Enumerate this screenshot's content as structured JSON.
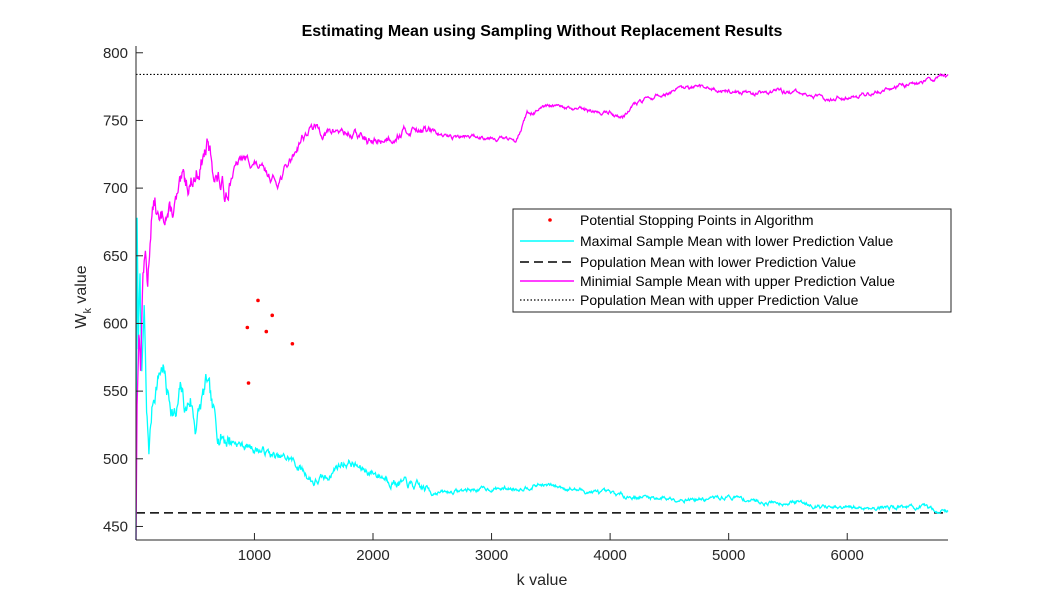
{
  "chart_data": {
    "type": "line",
    "title": "Estimating Mean using Sampling Without Replacement Results",
    "xlabel": "k value",
    "ylabel": {
      "main": "W",
      "sub": "k",
      "rest": " value"
    },
    "xlim": [
      1,
      6850
    ],
    "ylim": [
      440,
      805
    ],
    "xticks": [
      1000,
      2000,
      3000,
      4000,
      5000,
      6000
    ],
    "xtick_labels": [
      "1000",
      "2000",
      "3000",
      "4000",
      "5000",
      "6000"
    ],
    "yticks": [
      450,
      500,
      550,
      600,
      650,
      700,
      750,
      800
    ],
    "ytick_labels": [
      "450",
      "500",
      "550",
      "600",
      "650",
      "700",
      "750",
      "800"
    ],
    "grid": false,
    "legend_position": "upper-right",
    "legend": [
      "Potential Stopping Points in Algorithm",
      "Maximal Sample Mean with lower Prediction Value",
      "Population Mean with lower Prediction Value",
      "Minimial Sample Mean with upper Prediction Value",
      "Population Mean with upper Prediction Value"
    ],
    "colors": {
      "stopping_points": "#ff0000",
      "maximal": "#00ffff",
      "population_lower": "#000000",
      "minimal": "#ff00ff",
      "population_upper": "#000000"
    },
    "stopping_points": [
      {
        "x": 940,
        "y": 597
      },
      {
        "x": 950,
        "y": 556
      },
      {
        "x": 1030,
        "y": 617
      },
      {
        "x": 1100,
        "y": 594
      },
      {
        "x": 1150,
        "y": 606
      },
      {
        "x": 1320,
        "y": 585
      }
    ],
    "population_lower": 460,
    "population_upper": 784,
    "maximal_series": [
      [
        1,
        440
      ],
      [
        10,
        675
      ],
      [
        20,
        580
      ],
      [
        35,
        640
      ],
      [
        50,
        560
      ],
      [
        70,
        610
      ],
      [
        90,
        530
      ],
      [
        110,
        505
      ],
      [
        140,
        540
      ],
      [
        170,
        555
      ],
      [
        200,
        565
      ],
      [
        230,
        570
      ],
      [
        260,
        550
      ],
      [
        300,
        540
      ],
      [
        340,
        530
      ],
      [
        380,
        550
      ],
      [
        420,
        535
      ],
      [
        460,
        545
      ],
      [
        500,
        525
      ],
      [
        550,
        540
      ],
      [
        600,
        555
      ],
      [
        650,
        530
      ],
      [
        700,
        520
      ],
      [
        800,
        515
      ],
      [
        900,
        510
      ],
      [
        1000,
        508
      ],
      [
        1100,
        505
      ],
      [
        1200,
        500
      ],
      [
        1300,
        500
      ],
      [
        1400,
        492
      ],
      [
        1500,
        483
      ],
      [
        1600,
        485
      ],
      [
        1700,
        495
      ],
      [
        1800,
        498
      ],
      [
        1900,
        492
      ],
      [
        2000,
        490
      ],
      [
        2200,
        483
      ],
      [
        2400,
        478
      ],
      [
        2600,
        475
      ],
      [
        2800,
        477
      ],
      [
        3000,
        478
      ],
      [
        3200,
        478
      ],
      [
        3400,
        481
      ],
      [
        3600,
        479
      ],
      [
        3800,
        476
      ],
      [
        4000,
        474
      ],
      [
        4200,
        472
      ],
      [
        4500,
        471
      ],
      [
        4800,
        470
      ],
      [
        5000,
        472
      ],
      [
        5300,
        468
      ],
      [
        5600,
        468
      ],
      [
        5900,
        463
      ],
      [
        6200,
        464
      ],
      [
        6500,
        465
      ],
      [
        6850,
        461
      ]
    ],
    "minimal_series": [
      [
        1,
        440
      ],
      [
        10,
        540
      ],
      [
        25,
        600
      ],
      [
        40,
        570
      ],
      [
        60,
        640
      ],
      [
        80,
        650
      ],
      [
        100,
        630
      ],
      [
        130,
        680
      ],
      [
        160,
        690
      ],
      [
        200,
        670
      ],
      [
        250,
        685
      ],
      [
        300,
        680
      ],
      [
        350,
        690
      ],
      [
        400,
        700
      ],
      [
        450,
        705
      ],
      [
        500,
        710
      ],
      [
        550,
        720
      ],
      [
        600,
        730
      ],
      [
        650,
        715
      ],
      [
        700,
        705
      ],
      [
        750,
        695
      ],
      [
        800,
        712
      ],
      [
        900,
        722
      ],
      [
        1000,
        718
      ],
      [
        1100,
        710
      ],
      [
        1200,
        705
      ],
      [
        1300,
        720
      ],
      [
        1400,
        738
      ],
      [
        1500,
        745
      ],
      [
        1600,
        740
      ],
      [
        1700,
        743
      ],
      [
        1800,
        740
      ],
      [
        1900,
        738
      ],
      [
        2000,
        733
      ],
      [
        2200,
        740
      ],
      [
        2400,
        745
      ],
      [
        2600,
        738
      ],
      [
        2800,
        738
      ],
      [
        3000,
        738
      ],
      [
        3200,
        735
      ],
      [
        3300,
        755
      ],
      [
        3500,
        760
      ],
      [
        3700,
        758
      ],
      [
        3900,
        756
      ],
      [
        4000,
        756
      ],
      [
        4100,
        752
      ],
      [
        4200,
        762
      ],
      [
        4400,
        768
      ],
      [
        4600,
        773
      ],
      [
        4800,
        774
      ],
      [
        5000,
        772
      ],
      [
        5200,
        770
      ],
      [
        5400,
        772
      ],
      [
        5600,
        770
      ],
      [
        5800,
        766
      ],
      [
        6000,
        768
      ],
      [
        6200,
        770
      ],
      [
        6400,
        775
      ],
      [
        6600,
        778
      ],
      [
        6700,
        780
      ],
      [
        6850,
        784
      ]
    ]
  }
}
